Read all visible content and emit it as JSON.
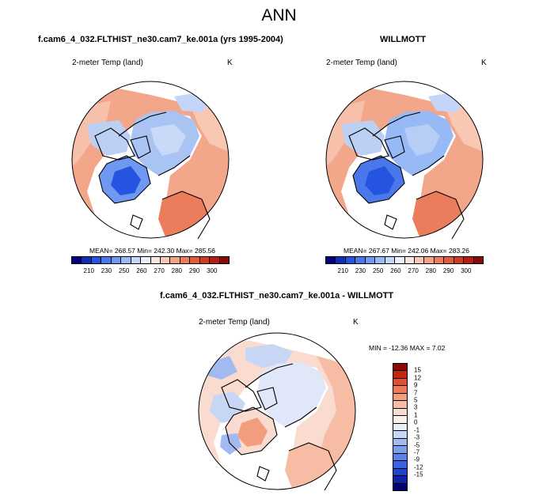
{
  "page_title": "ANN",
  "panels": [
    {
      "case_title": "f.cam6_4_032.FLTHIST_ne30.cam7_ke.001a (yrs 1995-2004)",
      "var_label": "2-meter Temp (land)",
      "units": "K",
      "stats": "MEAN= 268.57   Min= 242.30   Max= 285.56"
    },
    {
      "case_title": "WILLMOTT",
      "var_label": "2-meter Temp (land)",
      "units": "K",
      "stats": "MEAN= 267.67   Min= 242.06   Max= 283.26"
    },
    {
      "case_title": "f.cam6_4_032.FLTHIST_ne30.cam7_ke.001a - WILLMOTT",
      "var_label": "2-meter Temp (land)",
      "units": "K",
      "stats": "MIN = -12.36 MAX =  7.02"
    }
  ],
  "abs_colorbar": {
    "colors": [
      "#00007f",
      "#0f2fb8",
      "#2454e0",
      "#4a78ea",
      "#6f98f0",
      "#97b9f5",
      "#c3d5f8",
      "#ecf0f9",
      "#f9e7df",
      "#f8c8b3",
      "#f4a284",
      "#ec7d5c",
      "#e35a3b",
      "#d33a22",
      "#b81c10",
      "#8a0a05"
    ],
    "labels": [
      "210",
      "230",
      "250",
      "260",
      "270",
      "280",
      "290",
      "300"
    ]
  },
  "diff_colorbar": {
    "colors": [
      "#8a0a05",
      "#c3260f",
      "#e04e2f",
      "#ec7a58",
      "#f39d7f",
      "#f7bca4",
      "#f9dccf",
      "#fbf0ea",
      "#e9eef9",
      "#c8d6f5",
      "#a1bbf1",
      "#7c9fec",
      "#5a82e7",
      "#3a63df",
      "#1f43cc",
      "#0e22a9",
      "#000070"
    ],
    "labels": [
      "15",
      "12",
      "9",
      "7",
      "5",
      "3",
      "1",
      "0",
      "-1",
      "-3",
      "-5",
      "-7",
      "-9",
      "-12",
      "-15"
    ]
  }
}
